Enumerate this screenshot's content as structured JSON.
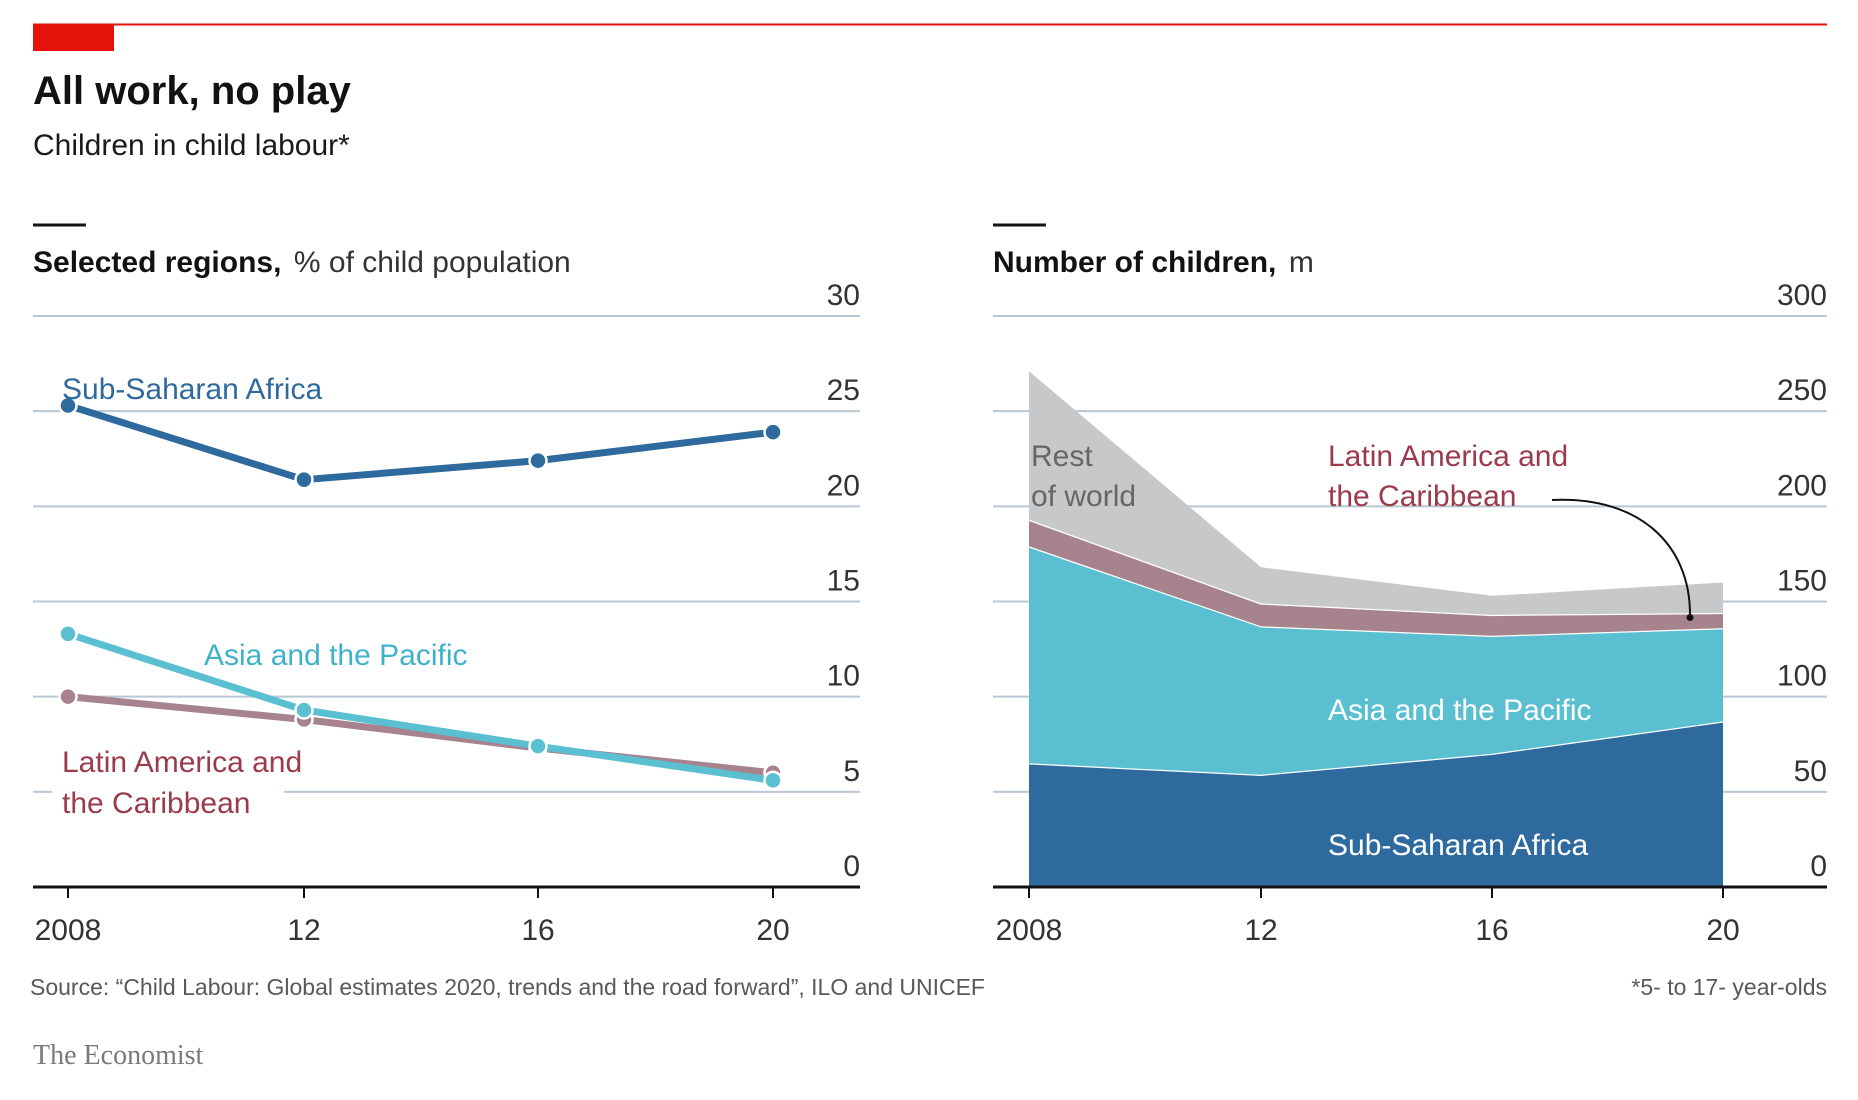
{
  "header": {
    "title": "All work, no play",
    "subtitle": "Children in child labour*"
  },
  "footer": {
    "source": "Source: “Child Labour: Global estimates 2020, trends and the road forward”, ILO and UNICEF",
    "note": "*5- to 17- year-olds",
    "brand": "The Economist"
  },
  "colors": {
    "accent": "#e3120b",
    "rule": "#e3120b",
    "ssa": "#2e6a9e",
    "asia": "#5bbfd2",
    "latam": "#a7838e",
    "latam_text": "#9a3a4b",
    "rest": "#c6c8ca",
    "grid": "#b9c7d4",
    "axis": "#121212"
  },
  "chart_data": [
    {
      "type": "line",
      "title": "Selected regions,",
      "unit": "% of child population",
      "categories": [
        "2008",
        "12",
        "16",
        "20"
      ],
      "x": [
        2008,
        2012,
        2016,
        2020
      ],
      "ylim": [
        0,
        30
      ],
      "yticks": [
        0,
        5,
        10,
        15,
        20,
        25,
        30
      ],
      "series": [
        {
          "name": "Sub-Saharan Africa",
          "label": "Sub-Saharan Africa",
          "values": [
            25.3,
            21.4,
            22.4,
            23.9
          ]
        },
        {
          "name": "Latin America and the Caribbean",
          "label_lines": [
            "Latin America and",
            "the Caribbean"
          ],
          "values": [
            10.0,
            8.8,
            7.3,
            6.0
          ]
        },
        {
          "name": "Asia and the Pacific",
          "label": "Asia and the Pacific",
          "values": [
            13.3,
            9.3,
            7.4,
            5.6
          ]
        }
      ]
    },
    {
      "type": "area",
      "title": "Number of children,",
      "unit": "m",
      "categories": [
        "2008",
        "12",
        "16",
        "20"
      ],
      "x": [
        2008,
        2012,
        2016,
        2020
      ],
      "ylim": [
        0,
        300
      ],
      "yticks": [
        0,
        50,
        100,
        150,
        200,
        250,
        300
      ],
      "stacked": true,
      "series": [
        {
          "name": "Sub-Saharan Africa",
          "label": "Sub-Saharan Africa",
          "values": [
            65,
            59,
            70,
            87
          ]
        },
        {
          "name": "Asia and the Pacific",
          "label": "Asia and the Pacific",
          "values": [
            114,
            78,
            62,
            49
          ]
        },
        {
          "name": "Latin America and the Caribbean",
          "label_lines": [
            "Latin America and",
            "the Caribbean"
          ],
          "values": [
            14,
            12,
            11,
            8
          ]
        },
        {
          "name": "Rest of world",
          "label_lines": [
            "Rest",
            "of world"
          ],
          "values": [
            78,
            19,
            10,
            16
          ]
        }
      ]
    }
  ]
}
